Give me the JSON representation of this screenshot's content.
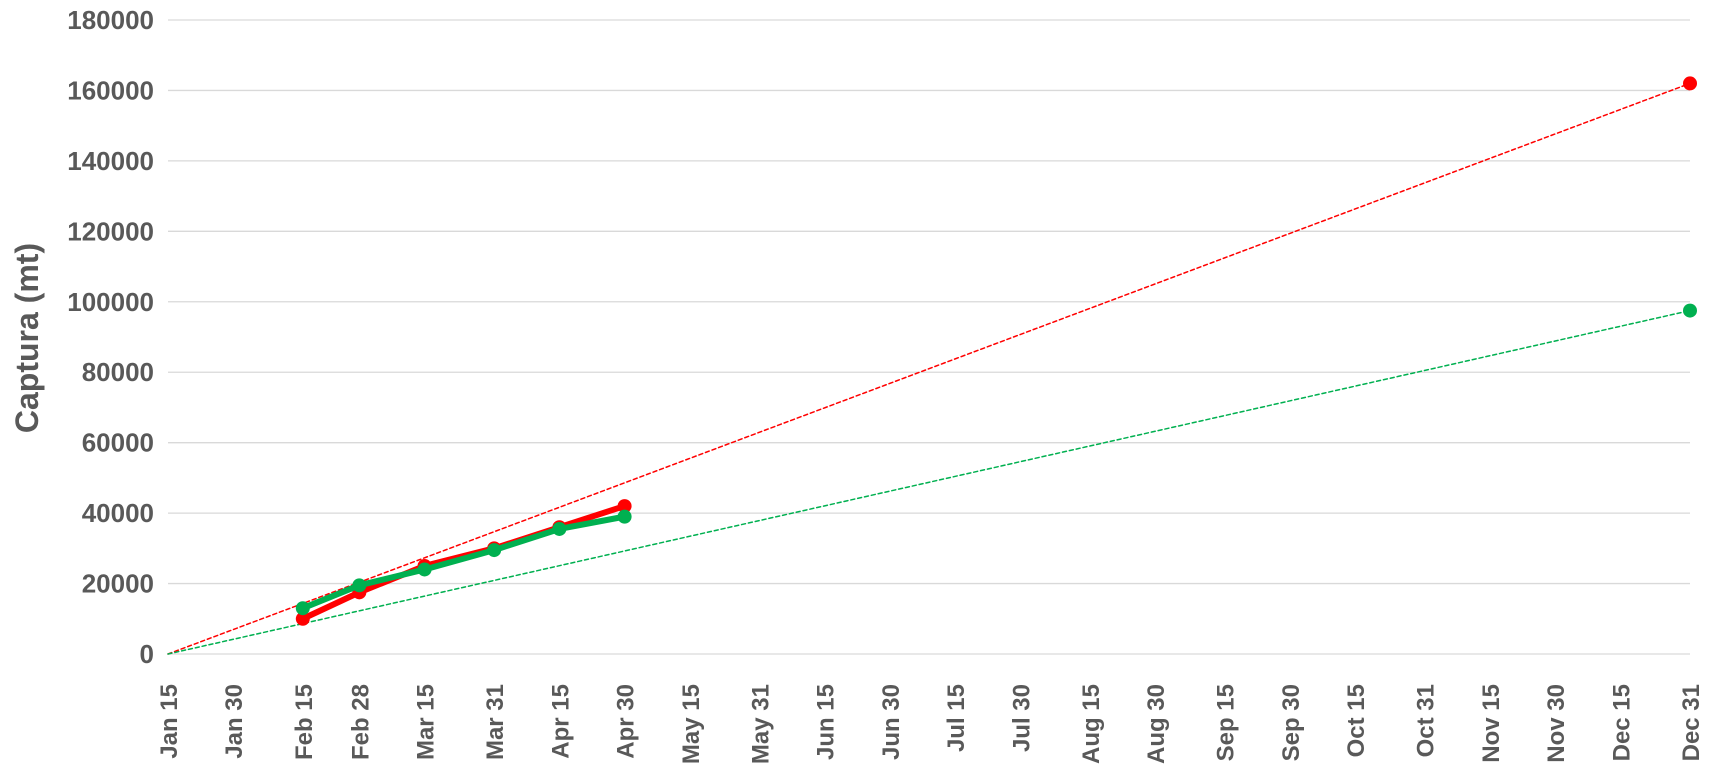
{
  "chart_data": {
    "type": "line",
    "title": "",
    "xlabel": "",
    "ylabel": "Captura (mt)",
    "ylim": [
      0,
      180000
    ],
    "yticks": [
      0,
      20000,
      40000,
      60000,
      80000,
      100000,
      120000,
      140000,
      160000,
      180000
    ],
    "xlim": [
      "Jan 15",
      "Dec 31"
    ],
    "xticks": [
      "Jan 15",
      "Jan 30",
      "Feb 15",
      "Feb 28",
      "Mar 15",
      "Mar 31",
      "Apr 15",
      "Apr 30",
      "May 15",
      "May 31",
      "Jun 15",
      "Jun 30",
      "Jul 15",
      "Jul 30",
      "Aug 15",
      "Aug 30",
      "Sep 15",
      "Sep 30",
      "Oct 15",
      "Oct 31",
      "Nov 15",
      "Nov 30",
      "Dec 15",
      "Dec 31"
    ],
    "grid": "horizontal",
    "legend": "none",
    "series": [
      {
        "color": "#ff0000",
        "style": "solid",
        "markers": true,
        "x": [
          "Feb 15",
          "Feb 28",
          "Mar 15",
          "Mar 31",
          "Apr 15",
          "Apr 30"
        ],
        "y": [
          10000,
          17500,
          25000,
          30000,
          36000,
          42000
        ]
      },
      {
        "color": "#00b050",
        "style": "solid",
        "markers": true,
        "x": [
          "Feb 15",
          "Feb 28",
          "Mar 15",
          "Mar 31",
          "Apr 15",
          "Apr 30"
        ],
        "y": [
          13000,
          19500,
          24000,
          29500,
          35500,
          39000
        ]
      },
      {
        "color": "#ff0000",
        "style": "dashed",
        "markers": "end",
        "x": [
          "Jan 15",
          "Dec 31"
        ],
        "y": [
          0,
          162000
        ]
      },
      {
        "color": "#00b050",
        "style": "dashed",
        "markers": "end",
        "x": [
          "Jan 15",
          "Dec 31"
        ],
        "y": [
          0,
          97500
        ]
      }
    ]
  }
}
